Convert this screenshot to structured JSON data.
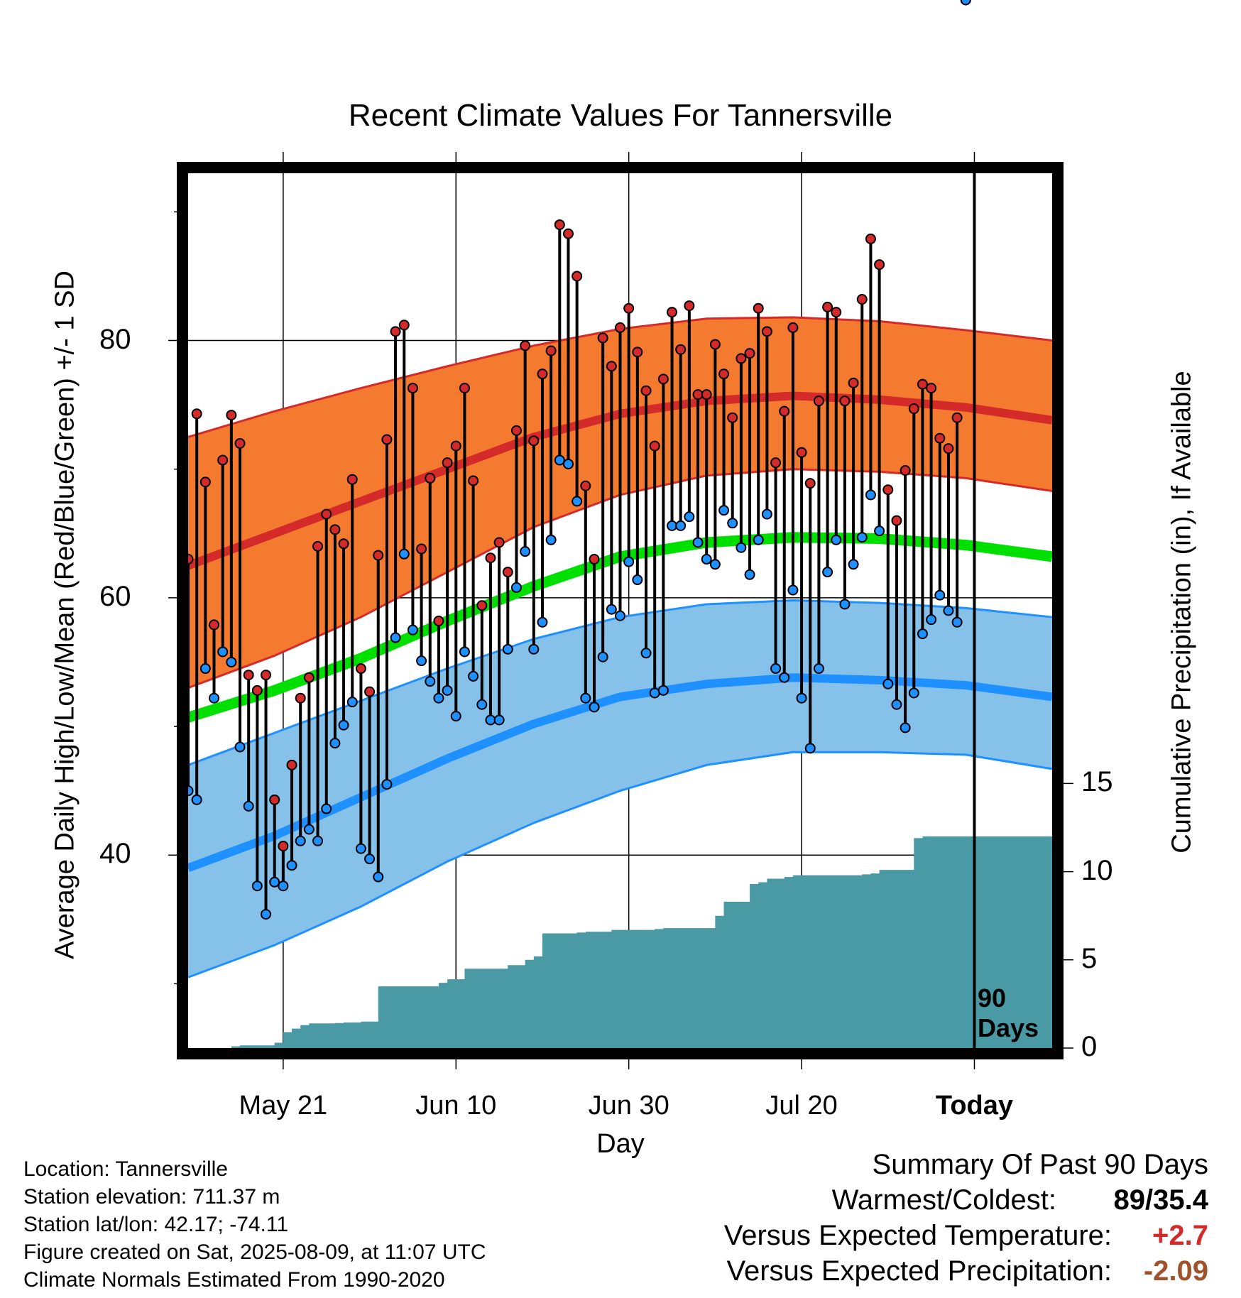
{
  "chart_data": {
    "type": "line",
    "title": "Recent Climate Values For Tannersville",
    "xlabel": "Day",
    "ylabel": "Average Daily High/Low/Mean (Red/Blue/Green) +/- 1 SD",
    "ylabel_right": "Cumulative Precipitation (in), If Available",
    "x_tick_labels": [
      "May 21",
      "Jun 10",
      "Jun 30",
      "Jul 20",
      "Today"
    ],
    "x_tick_day_index": [
      10,
      30,
      50,
      70,
      90
    ],
    "x_range_day_index": [
      -1,
      99
    ],
    "y_ticks": [
      40,
      60,
      80
    ],
    "ylim": [
      25,
      93
    ],
    "y2_ticks": [
      0,
      5,
      10,
      15
    ],
    "y2lim": [
      0,
      49.6
    ],
    "grid": true,
    "today_marker_label": "90 Days",
    "day_index_note": "day_index 0 = May 11",
    "normals": {
      "day_index": [
        -1,
        9,
        19,
        29,
        39,
        49,
        59,
        69,
        79,
        89,
        99
      ],
      "high_mean": [
        62.5,
        65.0,
        67.5,
        70.0,
        72.5,
        74.3,
        75.3,
        75.7,
        75.4,
        74.8,
        73.8
      ],
      "high_upper": [
        72.5,
        74.5,
        76.3,
        78.0,
        79.6,
        80.9,
        81.7,
        81.8,
        81.5,
        80.8,
        80.0
      ],
      "high_lower": [
        53.0,
        55.5,
        58.5,
        62.0,
        65.5,
        68.0,
        69.5,
        70.0,
        69.8,
        69.3,
        68.3
      ],
      "mean": [
        50.7,
        52.8,
        55.3,
        58.2,
        60.9,
        63.2,
        64.3,
        64.7,
        64.6,
        64.1,
        63.2
      ],
      "low_mean": [
        39.0,
        41.5,
        44.5,
        47.5,
        50.2,
        52.3,
        53.3,
        53.8,
        53.6,
        53.2,
        52.3
      ],
      "low_upper": [
        47.0,
        49.5,
        52.0,
        54.5,
        56.8,
        58.5,
        59.5,
        59.8,
        59.6,
        59.2,
        58.5
      ],
      "low_lower": [
        30.5,
        33.0,
        36.0,
        39.5,
        42.5,
        45.0,
        47.0,
        48.0,
        48.0,
        47.8,
        46.7
      ]
    },
    "observed": {
      "day_index": [
        -1,
        0,
        1,
        2,
        3,
        4,
        5,
        6,
        7,
        8,
        9,
        10,
        11,
        12,
        13,
        14,
        15,
        16,
        17,
        18,
        19,
        20,
        21,
        22,
        23,
        24,
        25,
        26,
        27,
        28,
        29,
        30,
        31,
        32,
        33,
        34,
        35,
        36,
        37,
        38,
        39,
        40,
        41,
        42,
        43,
        44,
        45,
        46,
        47,
        48,
        49,
        50,
        51,
        52,
        53,
        54,
        55,
        56,
        57,
        58,
        59,
        60,
        61,
        62,
        63,
        64,
        65,
        66,
        67,
        68,
        69,
        70,
        71,
        72,
        73,
        74,
        75,
        76,
        77,
        78,
        79,
        80,
        81,
        82,
        83,
        84,
        85,
        86,
        87,
        88,
        89
      ],
      "high": [
        63,
        74.3,
        69,
        57.9,
        70.7,
        74.2,
        72,
        54,
        52.8,
        54,
        44.3,
        40.7,
        47,
        52.2,
        53.8,
        64,
        66.5,
        65.3,
        64.2,
        69.2,
        54.5,
        52.7,
        63.3,
        72.3,
        80.7,
        81.2,
        76.3,
        63.8,
        69.3,
        58.2,
        70.5,
        71.8,
        76.3,
        69.1,
        59.4,
        63.1,
        64.3,
        62,
        73,
        79.6,
        72.2,
        77.4,
        79.2,
        89,
        88.3,
        85,
        68.7,
        63,
        80.2,
        78,
        81,
        82.5,
        79.1,
        76.1,
        71.8,
        77,
        82.2,
        79.3,
        82.7,
        75.8,
        75.8,
        79.7,
        77.4,
        74,
        78.6,
        79,
        82.5,
        80.7,
        70.5,
        74.5,
        81,
        71.3,
        68.9,
        75.3,
        82.6,
        82.2,
        75.3,
        76.7,
        83.2,
        87.9,
        85.9,
        68.4,
        66,
        69.9,
        74.7,
        76.6,
        76.3,
        72.4,
        71.6,
        74
      ],
      "low": [
        45,
        44.3,
        54.5,
        52.2,
        55.8,
        55,
        48.4,
        43.8,
        37.6,
        35.4,
        37.9,
        37.6,
        39.2,
        41.1,
        42,
        41.1,
        43.6,
        48.7,
        50.1,
        51.9,
        40.5,
        39.7,
        38.3,
        45.5,
        56.9,
        63.4,
        57.5,
        55.1,
        53.5,
        52.2,
        52.8,
        50.8,
        55.8,
        53.9,
        51.7,
        50.5,
        50.5,
        56,
        60.8,
        63.6,
        56,
        58.1,
        64.5,
        70.7,
        70.4,
        67.5,
        52.2,
        51.5,
        55.4,
        59.1,
        58.6,
        62.8,
        61.4,
        55.7,
        52.6,
        52.8,
        65.6,
        65.6,
        66.3,
        64.3,
        63,
        62.6,
        66.8,
        65.8,
        63.9,
        61.8,
        64.5,
        66.5,
        54.5,
        53.8,
        60.6,
        52.2,
        48.3,
        54.5,
        62,
        64.5,
        59.5,
        62.6,
        64.7,
        68,
        65.2,
        53.3,
        51.7,
        49.9,
        52.6,
        57.2,
        58.3,
        60.2,
        59.0,
        58.1
      ]
    },
    "cumulative_precipitation": {
      "day_index": [
        -1,
        3,
        4,
        5,
        6,
        7,
        8,
        9,
        10,
        11,
        12,
        13,
        14,
        15,
        16,
        17,
        18,
        19,
        20,
        21,
        22,
        23,
        24,
        25,
        26,
        27,
        28,
        29,
        30,
        31,
        32,
        33,
        34,
        35,
        36,
        37,
        38,
        39,
        40,
        41,
        42,
        43,
        44,
        45,
        46,
        47,
        48,
        49,
        50,
        51,
        52,
        53,
        54,
        55,
        56,
        57,
        58,
        59,
        60,
        61,
        62,
        63,
        64,
        65,
        66,
        67,
        68,
        69,
        70,
        71,
        72,
        73,
        74,
        75,
        76,
        77,
        78,
        79,
        80,
        81,
        82,
        83,
        84,
        85,
        86,
        87,
        88,
        89,
        90,
        91,
        92,
        93,
        94,
        95,
        96,
        97,
        98,
        99
      ],
      "values": [
        0,
        0,
        0.1,
        0.15,
        0.15,
        0.15,
        0.15,
        0.3,
        0.9,
        1.1,
        1.3,
        1.4,
        1.4,
        1.4,
        1.42,
        1.45,
        1.45,
        1.5,
        1.5,
        3.5,
        3.5,
        3.5,
        3.5,
        3.5,
        3.5,
        3.5,
        3.7,
        3.9,
        3.9,
        4.5,
        4.5,
        4.5,
        4.5,
        4.5,
        4.7,
        4.7,
        5.0,
        5.2,
        6.5,
        6.5,
        6.5,
        6.5,
        6.55,
        6.6,
        6.6,
        6.6,
        6.7,
        6.7,
        6.7,
        6.7,
        6.7,
        6.75,
        6.8,
        6.8,
        6.8,
        6.8,
        6.8,
        6.8,
        7.5,
        8.3,
        8.3,
        8.3,
        9.3,
        9.4,
        9.6,
        9.6,
        9.7,
        9.8,
        9.8,
        9.8,
        9.8,
        9.8,
        9.8,
        9.8,
        9.8,
        9.85,
        9.9,
        10.1,
        10.1,
        10.1,
        10.1,
        11.9,
        12,
        12,
        12,
        12,
        12,
        12,
        12,
        12,
        12,
        12,
        12,
        12,
        12,
        12,
        12,
        12
      ]
    }
  },
  "footer": {
    "location": "Location: Tannersville",
    "elevation": "Station elevation: 711.37 m",
    "latlon": "Station lat/lon: 42.17; -74.11",
    "created": "Figure created on Sat, 2025-08-09, at 11:07 UTC",
    "normals": "Climate Normals Estimated From 1990-2020"
  },
  "summary": {
    "heading": "Summary Of Past 90 Days",
    "warm_cold_label": "Warmest/Coldest:",
    "warm_cold_value": "89/35.4",
    "temp_label": "Versus Expected Temperature:",
    "temp_value": "+2.7",
    "precip_label": "Versus Expected Precipitation:",
    "precip_value": "-2.09",
    "temp_color": "#d42a2a",
    "precip_color": "#a0522d"
  },
  "colors": {
    "high_band": "#f47a30",
    "high_line": "#d42a2a",
    "low_band": "#85c1e9",
    "low_line": "#1e90ff",
    "mean_line": "#00e000",
    "precip_fill": "#4a9aa5",
    "high_dot": "#d42a2a",
    "low_dot": "#1e90ff"
  }
}
